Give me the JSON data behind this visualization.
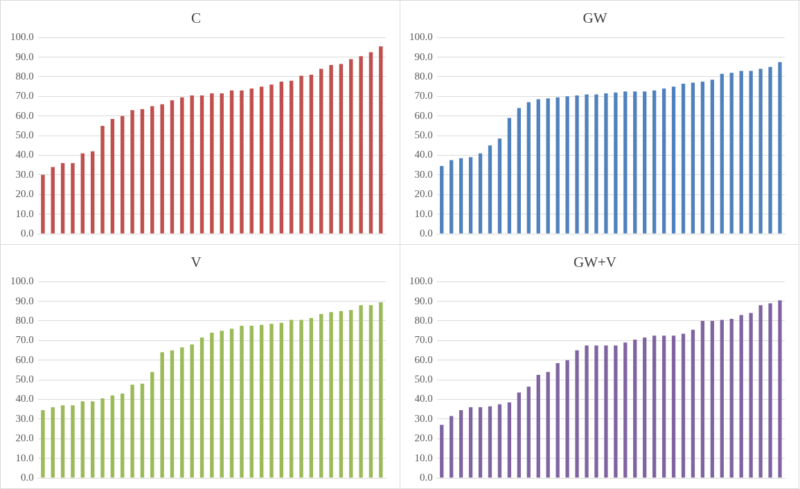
{
  "chart_data": [
    {
      "type": "bar",
      "title": "C",
      "categories": [
        null,
        null,
        null,
        null,
        null,
        null,
        null,
        null,
        null,
        null,
        null,
        null,
        null,
        null,
        null,
        null,
        null,
        null,
        null,
        null,
        null,
        null,
        null,
        null,
        null,
        null,
        null,
        null,
        null,
        null,
        null,
        null,
        null,
        null,
        null
      ],
      "color": "#c0504d",
      "values": [
        30,
        34,
        36,
        36,
        41,
        42,
        55,
        58.5,
        60,
        63,
        63.5,
        65,
        66,
        68,
        69.5,
        70.5,
        70.5,
        71.5,
        71.5,
        73,
        73,
        74,
        75,
        76,
        77.5,
        78,
        80.5,
        81,
        84,
        86,
        86.5,
        89,
        90.5,
        92.5,
        95.5
      ],
      "ylim": [
        0,
        100
      ],
      "yticks": [
        {
          "value": 0,
          "label": "0.0"
        },
        {
          "value": 10,
          "label": "10.0"
        },
        {
          "value": 20,
          "label": "20.0"
        },
        {
          "value": 30,
          "label": "30.0"
        },
        {
          "value": 40,
          "label": "40.0"
        },
        {
          "value": 50,
          "label": "50.0"
        },
        {
          "value": 60,
          "label": "60.0"
        },
        {
          "value": 70,
          "label": "70.0"
        },
        {
          "value": 80,
          "label": "80.0"
        },
        {
          "value": 90,
          "label": "90.0"
        },
        {
          "value": 100,
          "label": "100.0"
        }
      ],
      "grid": "y",
      "tick_labels": "y"
    },
    {
      "type": "bar",
      "title": "GW",
      "categories": [
        null,
        null,
        null,
        null,
        null,
        null,
        null,
        null,
        null,
        null,
        null,
        null,
        null,
        null,
        null,
        null,
        null,
        null,
        null,
        null,
        null,
        null,
        null,
        null,
        null,
        null,
        null,
        null,
        null,
        null,
        null,
        null,
        null,
        null,
        null,
        null
      ],
      "color": "#4f81bd",
      "values": [
        34.5,
        37.5,
        38.5,
        39,
        41,
        45,
        48.5,
        59,
        64,
        67,
        68.5,
        69,
        69.5,
        70,
        70.5,
        71,
        71,
        71.5,
        72,
        72.5,
        72.5,
        72.5,
        73,
        74,
        75,
        76.5,
        77,
        77.5,
        78.5,
        81.5,
        82,
        83,
        83,
        84,
        85,
        87.5
      ],
      "ylim": [
        0,
        100
      ],
      "yticks": [
        {
          "value": 0,
          "label": "0.0"
        },
        {
          "value": 10,
          "label": "10.0"
        },
        {
          "value": 20,
          "label": "20.0"
        },
        {
          "value": 30,
          "label": "30.0"
        },
        {
          "value": 40,
          "label": "40.0"
        },
        {
          "value": 50,
          "label": "50.0"
        },
        {
          "value": 60,
          "label": "60.0"
        },
        {
          "value": 70,
          "label": "70.0"
        },
        {
          "value": 80,
          "label": "80.0"
        },
        {
          "value": 90,
          "label": "90.0"
        },
        {
          "value": 100,
          "label": "100.0"
        }
      ],
      "grid": "y",
      "tick_labels": "y"
    },
    {
      "type": "bar",
      "title": "V",
      "categories": [
        null,
        null,
        null,
        null,
        null,
        null,
        null,
        null,
        null,
        null,
        null,
        null,
        null,
        null,
        null,
        null,
        null,
        null,
        null,
        null,
        null,
        null,
        null,
        null,
        null,
        null,
        null,
        null,
        null,
        null,
        null,
        null,
        null,
        null,
        null
      ],
      "color": "#9bbb59",
      "values": [
        34.5,
        36,
        37,
        37,
        39,
        39,
        40.5,
        42,
        43,
        47.5,
        48,
        54,
        64,
        65,
        66.5,
        68,
        71.5,
        74,
        75,
        76,
        77.5,
        77.5,
        78,
        78.5,
        79,
        80.5,
        80.5,
        81.5,
        83.5,
        84.5,
        85,
        85.5,
        88,
        88,
        89.5
      ],
      "ylim": [
        0,
        100
      ],
      "yticks": [
        {
          "value": 0,
          "label": "0.0"
        },
        {
          "value": 10,
          "label": "10.0"
        },
        {
          "value": 20,
          "label": "20.0"
        },
        {
          "value": 30,
          "label": "30.0"
        },
        {
          "value": 40,
          "label": "40.0"
        },
        {
          "value": 50,
          "label": "50.0"
        },
        {
          "value": 60,
          "label": "60.0"
        },
        {
          "value": 70,
          "label": "70.0"
        },
        {
          "value": 80,
          "label": "80.0"
        },
        {
          "value": 90,
          "label": "90.0"
        },
        {
          "value": 100,
          "label": "100.0"
        }
      ],
      "grid": "y",
      "tick_labels": "y"
    },
    {
      "type": "bar",
      "title": "GW+V",
      "categories": [
        null,
        null,
        null,
        null,
        null,
        null,
        null,
        null,
        null,
        null,
        null,
        null,
        null,
        null,
        null,
        null,
        null,
        null,
        null,
        null,
        null,
        null,
        null,
        null,
        null,
        null,
        null,
        null,
        null,
        null,
        null,
        null,
        null,
        null,
        null,
        null
      ],
      "color": "#8064a2",
      "values": [
        27,
        31.5,
        34.5,
        36,
        36,
        36.5,
        37.5,
        38.5,
        43.5,
        46.5,
        52.5,
        54,
        58.5,
        60,
        65,
        67.5,
        67.5,
        67.5,
        67.5,
        69,
        70.5,
        71.5,
        72.5,
        72.5,
        72.5,
        73.5,
        75.5,
        80,
        80,
        80.5,
        81,
        83,
        84,
        88,
        89,
        90.5
      ],
      "ylim": [
        0,
        100
      ],
      "yticks": [
        {
          "value": 0,
          "label": "0.0"
        },
        {
          "value": 10,
          "label": "10.0"
        },
        {
          "value": 20,
          "label": "20.0"
        },
        {
          "value": 30,
          "label": "30.0"
        },
        {
          "value": 40,
          "label": "40.0"
        },
        {
          "value": 50,
          "label": "50.0"
        },
        {
          "value": 60,
          "label": "60.0"
        },
        {
          "value": 70,
          "label": "70.0"
        },
        {
          "value": 80,
          "label": "80.0"
        },
        {
          "value": 90,
          "label": "90.0"
        },
        {
          "value": 100,
          "label": "100.0"
        }
      ],
      "grid": "y",
      "tick_labels": "y"
    }
  ]
}
